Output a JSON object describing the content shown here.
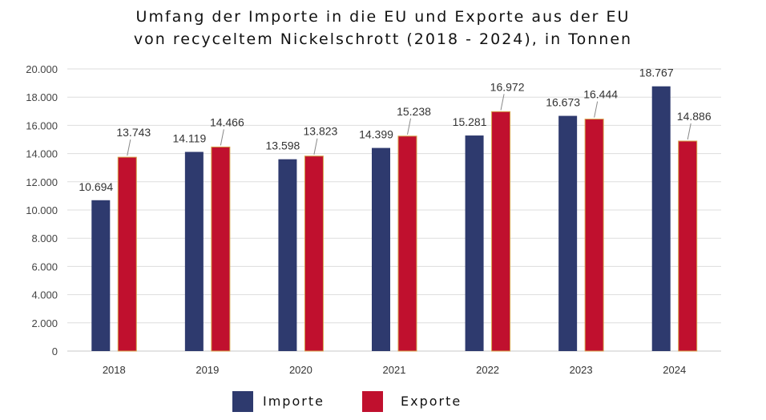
{
  "chart_data": {
    "type": "bar",
    "title_line1": "Umfang der Importe in die EU und Exporte aus der EU",
    "title_line2": "von recyceltem Nickelschrott (2018 - 2024), in Tonnen",
    "categories": [
      "2018",
      "2019",
      "2020",
      "2021",
      "2022",
      "2023",
      "2024"
    ],
    "series": [
      {
        "name": "Importe",
        "color": "#2e3a6e",
        "values": [
          10694,
          14119,
          13598,
          14399,
          15281,
          16673,
          18767
        ],
        "labels": [
          "10.694",
          "14.119",
          "13.598",
          "14.399",
          "15.281",
          "16.673",
          "18.767"
        ]
      },
      {
        "name": "Exporte",
        "color": "#c0102e",
        "values": [
          13743,
          14466,
          13823,
          15238,
          16972,
          16444,
          14886
        ],
        "labels": [
          "13.743",
          "14.466",
          "13.823",
          "15.238",
          "16.972",
          "16.444",
          "14.886"
        ]
      }
    ],
    "ylim": [
      0,
      20000
    ],
    "yticks": [
      0,
      2000,
      4000,
      6000,
      8000,
      10000,
      12000,
      14000,
      16000,
      18000,
      20000
    ],
    "ytick_labels": [
      "0",
      "2.000",
      "4.000",
      "6.000",
      "8.000",
      "10.000",
      "12.000",
      "14.000",
      "16.000",
      "18.000",
      "20.000"
    ],
    "grid": true,
    "legend_position": "bottom"
  }
}
